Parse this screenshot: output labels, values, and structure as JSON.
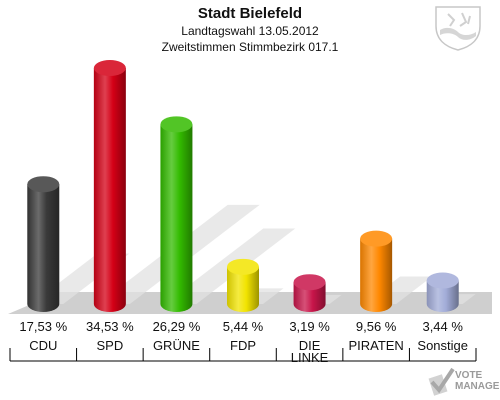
{
  "chart_data": {
    "type": "bar",
    "title": "Stadt Bielefeld",
    "subtitle_1": "Landtagswahl 13.05.2012",
    "subtitle_2": "Zweitstimmen Stimmbezirk 017.1",
    "categories": [
      "CDU",
      "SPD",
      "GRÜNE",
      "FDP",
      "DIE LINKE",
      "PIRATEN",
      "Sonstige"
    ],
    "category_lines": [
      [
        "CDU"
      ],
      [
        "SPD"
      ],
      [
        "GRÜNE"
      ],
      [
        "FDP"
      ],
      [
        "DIE",
        "LINKE"
      ],
      [
        "PIRATEN"
      ],
      [
        "Sonstige"
      ]
    ],
    "values": [
      17.53,
      34.53,
      26.29,
      5.44,
      3.19,
      9.56,
      3.44
    ],
    "value_labels": [
      "17,53 %",
      "34,53 %",
      "26,29 %",
      "5,44 %",
      "3,19 %",
      "9,56 %",
      "3,44 %"
    ],
    "colors": [
      "#3a3a3a",
      "#d40016",
      "#33bb00",
      "#f2e400",
      "#c8154a",
      "#ff8800",
      "#a2acd8"
    ],
    "xlabel": "",
    "ylabel": "",
    "ylim": [
      0,
      34.53
    ],
    "grid": false,
    "legend": "none"
  },
  "branding": {
    "watermark_line1": "VOTE",
    "watermark_line2": "MANAGER",
    "crest_icon": "coat-of-arms-icon",
    "watermark_icon": "vote-manager-logo-icon"
  }
}
